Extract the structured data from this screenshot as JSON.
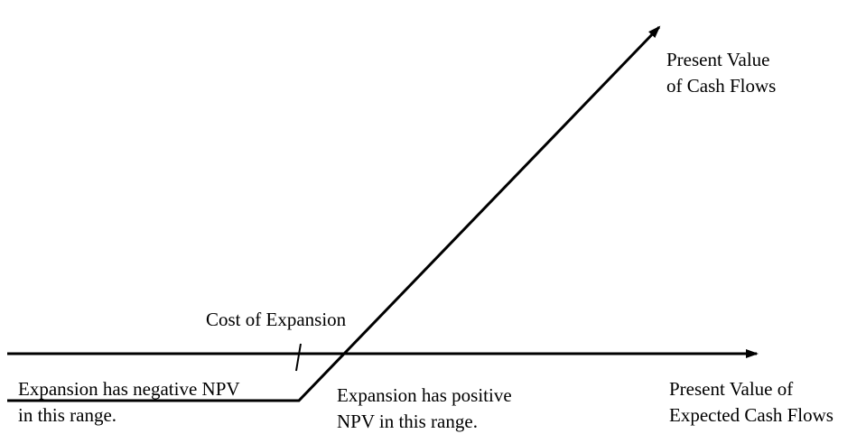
{
  "diagram": {
    "payoff_label": {
      "line1": "Present Value",
      "line2": "of Cash Flows"
    },
    "x_axis_label": {
      "line1": "Present Value of",
      "line2": "Expected Cash Flows"
    },
    "cost_label": "Cost of Expansion",
    "negative_region": {
      "line1": "Expansion has negative NPV",
      "line2": "in this range."
    },
    "positive_region": {
      "line1": "Expansion has positive",
      "line2": "NPV in this range."
    }
  }
}
